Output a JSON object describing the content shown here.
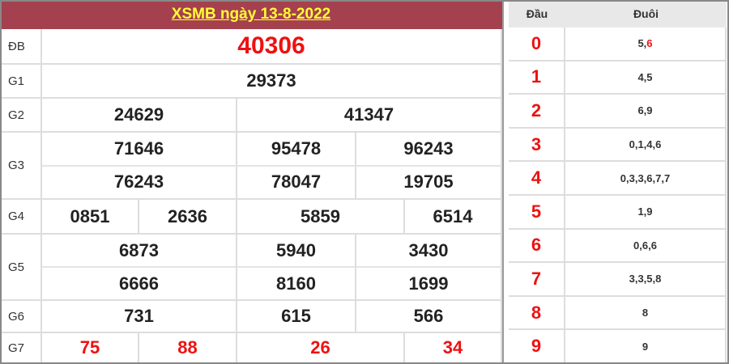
{
  "title": "XSMB ngày 13-8-2022",
  "prizes": {
    "db": {
      "label": "ĐB",
      "values": [
        "40306"
      ]
    },
    "g1": {
      "label": "G1",
      "values": [
        "29373"
      ]
    },
    "g2": {
      "label": "G2",
      "values": [
        "24629",
        "41347"
      ]
    },
    "g3": {
      "label": "G3",
      "values": [
        "71646",
        "95478",
        "96243",
        "76243",
        "78047",
        "19705"
      ]
    },
    "g4": {
      "label": "G4",
      "values": [
        "0851",
        "2636",
        "5859",
        "6514"
      ]
    },
    "g5": {
      "label": "G5",
      "values": [
        "6873",
        "5940",
        "3430",
        "6666",
        "8160",
        "1699"
      ]
    },
    "g6": {
      "label": "G6",
      "values": [
        "731",
        "615",
        "566"
      ]
    },
    "g7": {
      "label": "G7",
      "values": [
        "75",
        "88",
        "26",
        "34"
      ]
    }
  },
  "loto": {
    "head_label": "Đầu",
    "tail_label": "Đuôi",
    "rows": [
      {
        "head": "0",
        "tails": [
          {
            "t": "5,"
          },
          {
            "t": "6",
            "hl": true
          }
        ]
      },
      {
        "head": "1",
        "tails": [
          {
            "t": "4,5"
          }
        ]
      },
      {
        "head": "2",
        "tails": [
          {
            "t": "6,9"
          }
        ]
      },
      {
        "head": "3",
        "tails": [
          {
            "t": "0,1,4,6"
          }
        ]
      },
      {
        "head": "4",
        "tails": [
          {
            "t": "0,3,3,6,7,7"
          }
        ]
      },
      {
        "head": "5",
        "tails": [
          {
            "t": "1,9"
          }
        ]
      },
      {
        "head": "6",
        "tails": [
          {
            "t": "0,6,6"
          }
        ]
      },
      {
        "head": "7",
        "tails": [
          {
            "t": "3,3,5,8"
          }
        ]
      },
      {
        "head": "8",
        "tails": [
          {
            "t": "8"
          }
        ]
      },
      {
        "head": "9",
        "tails": [
          {
            "t": "9"
          }
        ]
      }
    ]
  },
  "colors": {
    "header_bg": "#a5404e",
    "title_text": "#ffff33",
    "highlight": "#ee1111"
  }
}
